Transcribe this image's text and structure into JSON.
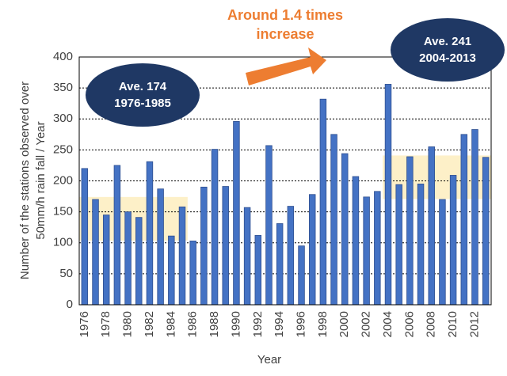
{
  "chart_data": {
    "type": "bar",
    "ylabel": [
      "Number of the stations observed over",
      "50mm/h rain fall / Year"
    ],
    "xlabel": "Year",
    "categories": [
      "1976",
      null,
      "1978",
      null,
      "1980",
      null,
      "1982",
      null,
      "1984",
      null,
      "1986",
      null,
      "1988",
      null,
      "1990",
      null,
      "1992",
      null,
      "1994",
      null,
      "1996",
      null,
      "1998",
      null,
      "2000",
      null,
      "2002",
      null,
      "2004",
      null,
      "2006",
      null,
      "2008",
      null,
      "2010",
      null,
      "2012",
      null
    ],
    "values": [
      220,
      170,
      145,
      225,
      150,
      141,
      231,
      187,
      111,
      158,
      103,
      190,
      251,
      191,
      296,
      157,
      112,
      257,
      131,
      159,
      95,
      178,
      332,
      275,
      244,
      207,
      174,
      183,
      356,
      194,
      239,
      195,
      255,
      170,
      209,
      275,
      283,
      238
    ],
    "color": "#4472c4",
    "ylim": [
      0,
      400
    ],
    "yticks": [
      0,
      50,
      100,
      150,
      200,
      250,
      300,
      350,
      400
    ],
    "grid": true,
    "averages": [
      {
        "label": "Ave. 174",
        "value": 174,
        "period": "1976-1985"
      },
      {
        "label": "Ave. 241",
        "value": 241,
        "period": "2004-2013"
      }
    ],
    "annotation": [
      "Around 1.4 times",
      "increase"
    ]
  }
}
